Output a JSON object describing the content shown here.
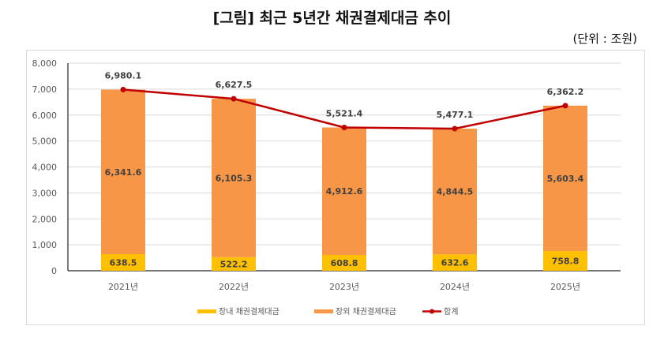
{
  "title": "[그림] 최근 5년간 채권결제대금 추이",
  "unit_note": "(단위 : 조원)",
  "chart_data": {
    "type": "bar",
    "stacked": true,
    "categories": [
      "2021년",
      "2022년",
      "2023년",
      "2024년",
      "2025년"
    ],
    "series": [
      {
        "name": "장내 채권결제대금",
        "type": "bar",
        "color": "#FFC000",
        "values": [
          638.5,
          522.2,
          608.8,
          632.6,
          758.8
        ],
        "labels": [
          "638.5",
          "522.2",
          "608.8",
          "632.6",
          "758.8"
        ]
      },
      {
        "name": "장외 채권결제대금",
        "type": "bar",
        "color": "#F79646",
        "values": [
          6341.6,
          6105.3,
          4912.6,
          4844.5,
          5603.4
        ],
        "labels": [
          "6,341.6",
          "6,105.3",
          "4,912.6",
          "4,844.5",
          "5,603.4"
        ]
      },
      {
        "name": "합계",
        "type": "line",
        "color": "#C00000",
        "values": [
          6980.1,
          6627.5,
          5521.4,
          5477.1,
          6362.2
        ],
        "labels": [
          "6,980.1",
          "6,627.5",
          "5,521.4",
          "5,477.1",
          "6,362.2"
        ]
      }
    ],
    "ylim": [
      0,
      8000
    ],
    "yticks": [
      "0",
      "1,000",
      "2,000",
      "3,000",
      "4,000",
      "5,000",
      "6,000",
      "7,000",
      "8,000"
    ],
    "grid": true,
    "legend": "bottom"
  }
}
